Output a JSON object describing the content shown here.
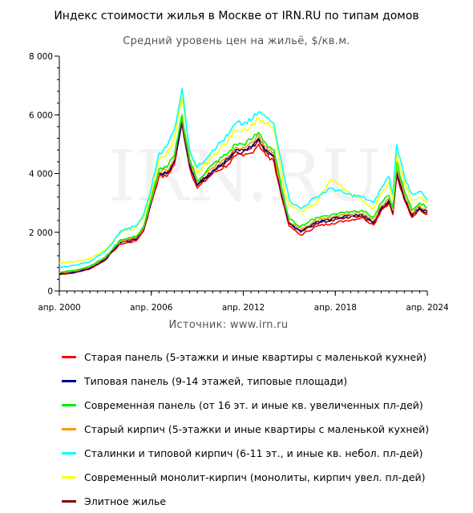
{
  "title": "Индекс стоимости жилья в Москве от IRN.RU по типам домов",
  "subtitle": "Средний уровень цен на жильё, $/кв.м.",
  "source": "Источник: www.irn.ru",
  "watermark": "IRN.RU",
  "chart_data": {
    "type": "line",
    "title": "Индекс стоимости жилья в Москве от IRN.RU по типам домов",
    "subtitle": "Средний уровень цен на жильё, $/кв.м.",
    "xlabel": "",
    "ylabel": "",
    "x": [
      "2000-04",
      "2001-04",
      "2002-04",
      "2003-04",
      "2003-10",
      "2004-04",
      "2005-04",
      "2005-10",
      "2006-04",
      "2006-10",
      "2007-04",
      "2007-10",
      "2008-04",
      "2008-10",
      "2009-04",
      "2010-04",
      "2011-04",
      "2011-10",
      "2012-04",
      "2012-10",
      "2013-04",
      "2013-10",
      "2014-04",
      "2014-10",
      "2015-01",
      "2015-04",
      "2016-01",
      "2017-01",
      "2018-01",
      "2019-01",
      "2020-01",
      "2020-10",
      "2021-04",
      "2021-10",
      "2022-01",
      "2022-04",
      "2022-10",
      "2023-04",
      "2023-10",
      "2024-04"
    ],
    "xlim": [
      "2000-04",
      "2024-04"
    ],
    "x_ticks": [
      "апр. 2000",
      "апр. 2006",
      "апр. 2012",
      "апр. 2018",
      "апр. 2024"
    ],
    "ylim": [
      0,
      8000
    ],
    "y_ticks": [
      "0",
      "2 000",
      "4 000",
      "6 000",
      "8 000"
    ],
    "grid": false,
    "legend_position": "bottom",
    "series": [
      {
        "name": "Старая панель (5-этажки и иные квартиры с маленькой кухней)",
        "color": "#ff0000",
        "values": [
          560,
          620,
          750,
          1050,
          1350,
          1600,
          1700,
          2050,
          3000,
          3900,
          3900,
          4300,
          5700,
          4200,
          3500,
          4000,
          4300,
          4600,
          4600,
          4700,
          5000,
          4600,
          4400,
          3200,
          2700,
          2200,
          1900,
          2200,
          2300,
          2400,
          2500,
          2250,
          2750,
          3000,
          2600,
          3900,
          3100,
          2500,
          2800,
          2600
        ]
      },
      {
        "name": "Типовая панель (9-14 этажей, типовые площади)",
        "color": "#000080",
        "values": [
          580,
          640,
          780,
          1080,
          1400,
          1650,
          1750,
          2100,
          3050,
          4000,
          4000,
          4400,
          5800,
          4300,
          3600,
          4100,
          4500,
          4800,
          4800,
          4900,
          5200,
          4800,
          4600,
          3300,
          2800,
          2300,
          2050,
          2350,
          2450,
          2550,
          2600,
          2350,
          2850,
          3100,
          2700,
          4100,
          3200,
          2600,
          2850,
          2700
        ]
      },
      {
        "name": "Современная панель (от 16 эт. и иные кв. увеличенных пл-дей)",
        "color": "#00ee00",
        "values": [
          640,
          700,
          850,
          1150,
          1450,
          1750,
          1850,
          2200,
          3150,
          4150,
          4200,
          4600,
          6000,
          4500,
          3750,
          4300,
          4700,
          5000,
          5000,
          5150,
          5400,
          5000,
          4800,
          3500,
          2950,
          2450,
          2200,
          2500,
          2600,
          2700,
          2750,
          2500,
          3000,
          3250,
          2850,
          4400,
          3400,
          2750,
          3000,
          2850
        ]
      },
      {
        "name": "Старый кирпич (5-этажки и иные квартиры с маленькой кухней)",
        "color": "#ff9900",
        "values": [
          620,
          680,
          820,
          1120,
          1420,
          1700,
          1800,
          2150,
          3100,
          4050,
          4100,
          4500,
          5900,
          4400,
          3700,
          4200,
          4600,
          4900,
          4900,
          5050,
          5300,
          4900,
          4700,
          3400,
          2850,
          2350,
          2100,
          2400,
          2500,
          2600,
          2650,
          2400,
          2900,
          3150,
          2750,
          4200,
          3300,
          2650,
          2900,
          2750
        ]
      },
      {
        "name": "Сталинки и типовой кирпич (6-11 эт., и иные кв. небол. пл-дей)",
        "color": "#00ffff",
        "values": [
          800,
          870,
          1000,
          1350,
          1650,
          2050,
          2200,
          2600,
          3500,
          4700,
          4900,
          5500,
          6900,
          4800,
          4200,
          4800,
          5300,
          5700,
          5700,
          5800,
          6100,
          5900,
          5700,
          4400,
          3700,
          3100,
          2800,
          3200,
          3500,
          3300,
          3200,
          3000,
          3500,
          3900,
          3300,
          5000,
          3900,
          3300,
          3400,
          3100
        ]
      },
      {
        "name": "Современный монолит-кирпич (монолиты, кирпич увел. пл-дей)",
        "color": "#ffff00",
        "values": [
          960,
          1000,
          1100,
          1400,
          1700,
          2000,
          2150,
          2500,
          3350,
          4450,
          4650,
          5200,
          6600,
          4700,
          4000,
          4600,
          5100,
          5500,
          5500,
          5600,
          5900,
          5700,
          5500,
          4000,
          3300,
          2900,
          2700,
          3000,
          3800,
          3400,
          3100,
          2800,
          3300,
          3700,
          3100,
          4700,
          3700,
          3100,
          3200,
          3000
        ]
      },
      {
        "name": "Элитное жилье",
        "color": "#800000",
        "values": [
          600,
          660,
          800,
          1100,
          1380,
          1680,
          1780,
          2120,
          3060,
          4000,
          4000,
          4400,
          5850,
          4300,
          3600,
          4100,
          4450,
          4750,
          4750,
          4850,
          5150,
          4750,
          4550,
          3300,
          2800,
          2300,
          2000,
          2300,
          2400,
          2500,
          2550,
          2300,
          2800,
          3050,
          2650,
          4000,
          3150,
          2550,
          2800,
          2650
        ]
      }
    ]
  }
}
